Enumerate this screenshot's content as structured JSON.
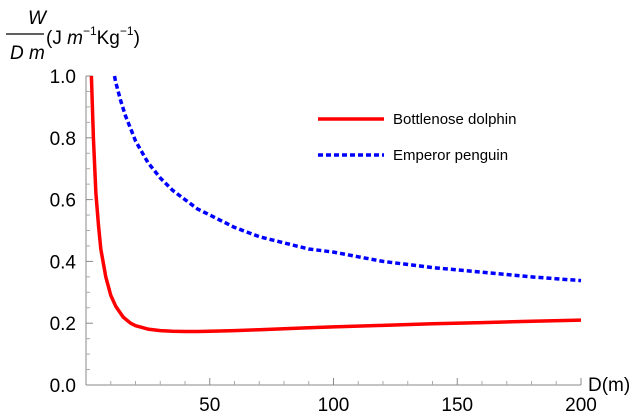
{
  "chart_data": {
    "type": "line",
    "ylabel": {
      "num": "W",
      "den": "D m",
      "units_prefix": "(J ",
      "units_m": "m",
      "units_exp1": "−1",
      "units_kg": "Kg",
      "units_exp2": "−1",
      "units_suffix": ")"
    },
    "xlabel": "D(m)",
    "xlim": [
      0,
      200
    ],
    "ylim": [
      0,
      1.0
    ],
    "xticks": [
      50,
      100,
      150,
      200
    ],
    "xtick_labels": [
      "50",
      "100",
      "150",
      "200"
    ],
    "yticks": [
      0.0,
      0.2,
      0.4,
      0.6,
      0.8,
      1.0
    ],
    "ytick_labels": [
      "0.0",
      "0.2",
      "0.4",
      "0.6",
      "0.8",
      "1.0"
    ],
    "grid": false,
    "legend_position": "top-right",
    "series": [
      {
        "name": "Bottlenose dolphin",
        "color": "#ff0000",
        "style": "solid",
        "x": [
          2.2,
          3,
          4,
          5,
          6,
          8,
          10,
          12,
          15,
          18,
          20,
          25,
          30,
          35,
          40,
          45,
          50,
          60,
          70,
          80,
          90,
          100,
          120,
          140,
          160,
          180,
          200
        ],
        "y": [
          1.0,
          0.8,
          0.62,
          0.52,
          0.44,
          0.35,
          0.29,
          0.255,
          0.22,
          0.2,
          0.192,
          0.181,
          0.176,
          0.174,
          0.173,
          0.173,
          0.174,
          0.176,
          0.179,
          0.182,
          0.185,
          0.188,
          0.193,
          0.198,
          0.202,
          0.206,
          0.21
        ]
      },
      {
        "name": "Emperor penguin",
        "color": "#0000ff",
        "style": "dashed",
        "x": [
          11.5,
          12,
          14,
          16,
          18,
          20,
          25,
          30,
          35,
          40,
          45,
          50,
          60,
          70,
          80,
          90,
          100,
          110,
          120,
          140,
          160,
          180,
          200
        ],
        "y": [
          1.0,
          0.98,
          0.92,
          0.87,
          0.83,
          0.79,
          0.72,
          0.67,
          0.63,
          0.6,
          0.57,
          0.55,
          0.51,
          0.48,
          0.46,
          0.44,
          0.43,
          0.415,
          0.4,
          0.38,
          0.365,
          0.35,
          0.338
        ]
      }
    ]
  }
}
